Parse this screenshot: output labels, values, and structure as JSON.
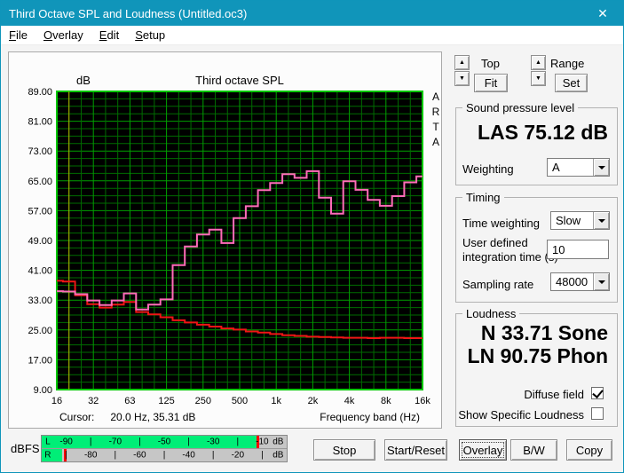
{
  "window": {
    "title": "Third Octave SPL and Loudness (Untitled.oc3)",
    "close_glyph": "✕"
  },
  "menu": {
    "items": [
      "File",
      "Overlay",
      "Edit",
      "Setup"
    ]
  },
  "chart_data": {
    "type": "step-line",
    "title": "Third octave SPL",
    "ylabel": "dB",
    "xlabel": "Frequency band (Hz)",
    "watermark": "ARTA",
    "ylim": [
      9,
      89
    ],
    "y_tick_step": 8,
    "y_minor_step": 2,
    "y_ticks": [
      "89.00",
      "81.00",
      "73.00",
      "65.00",
      "57.00",
      "49.00",
      "41.00",
      "33.00",
      "25.00",
      "17.00",
      "9.00"
    ],
    "x_ticks": [
      "16",
      "32",
      "63",
      "125",
      "250",
      "500",
      "1k",
      "2k",
      "4k",
      "8k",
      "16k"
    ],
    "bands": [
      "16",
      "20",
      "25",
      "31.5",
      "40",
      "50",
      "63",
      "80",
      "100",
      "125",
      "160",
      "200",
      "250",
      "315",
      "400",
      "500",
      "630",
      "800",
      "1k",
      "1.25k",
      "1.6k",
      "2k",
      "2.5k",
      "3.15k",
      "4k",
      "5k",
      "6.3k",
      "8k",
      "10k",
      "12.5k",
      "16k"
    ],
    "series": [
      {
        "name": "third-octave-spl",
        "color": "#ff6cb8",
        "values": [
          35.4,
          35.3,
          34.6,
          32.9,
          31.7,
          32.9,
          34.8,
          30.5,
          31.8,
          33.2,
          42.4,
          47.4,
          50.6,
          51.9,
          48.3,
          55.0,
          58.2,
          62.5,
          64.4,
          66.8,
          65.8,
          67.6,
          60.5,
          56.2,
          64.9,
          62.6,
          59.9,
          58.3,
          60.9,
          64.6,
          66.2
        ]
      },
      {
        "name": "reference-curve",
        "color": "#ef1515",
        "values": [
          38.2,
          38.0,
          34.3,
          31.9,
          31.0,
          31.8,
          32.5,
          29.8,
          29.2,
          28.4,
          27.6,
          27.0,
          26.4,
          25.9,
          25.4,
          25.1,
          24.6,
          24.3,
          23.9,
          23.6,
          23.4,
          23.2,
          23.1,
          23.0,
          22.9,
          22.9,
          22.8,
          22.9,
          22.9,
          22.8,
          22.8
        ]
      }
    ],
    "cursor": {
      "label": "Cursor:",
      "value": "20.0 Hz, 35.31 dB",
      "band_index": 1,
      "color": "#b9b900"
    },
    "grid": {
      "bg": "#000000",
      "minor": "#006c00",
      "major": "#00a000",
      "border": "#00c800"
    }
  },
  "scaler": {
    "top_label": "Top",
    "fit_label": "Fit",
    "range_label": "Range",
    "set_label": "Set",
    "up_glyph": "▲",
    "down_glyph": "▼"
  },
  "spl_group": {
    "title": "Sound pressure level",
    "value": "LAS 75.12 dB",
    "weighting_label": "Weighting",
    "weighting_value": "A"
  },
  "timing_group": {
    "title": "Timing",
    "time_weighting_label": "Time weighting",
    "time_weighting_value": "Slow",
    "integration_label_1": "User defined",
    "integration_label_2": "integration time (s)",
    "integration_value": "10",
    "sampling_label": "Sampling rate",
    "sampling_value": "48000"
  },
  "loudness_group": {
    "title": "Loudness",
    "n_value": "N 33.71 Sone",
    "ln_value": "LN 90.75 Phon",
    "diffuse_label": "Diffuse field",
    "diffuse_checked": true,
    "specific_label": "Show Specific Loudness",
    "specific_checked": false
  },
  "meter": {
    "label": "dBFS",
    "rows": [
      {
        "channel": "L",
        "bar_pct": 87.5,
        "peak_pct": 87.8,
        "labels": [
          {
            "t": "L",
            "x": 2.5
          },
          {
            "t": "-90",
            "x": 10
          },
          {
            "t": "|",
            "x": 20
          },
          {
            "t": "-70",
            "x": 30
          },
          {
            "t": "|",
            "x": 40
          },
          {
            "t": "-50",
            "x": 50
          },
          {
            "t": "|",
            "x": 60
          },
          {
            "t": "-30",
            "x": 70
          },
          {
            "t": "|",
            "x": 80
          },
          {
            "t": "-10",
            "x": 90
          },
          {
            "t": "dB",
            "x": 96.5
          }
        ]
      },
      {
        "channel": "R",
        "bar_pct": 8.3,
        "peak_pct": 9,
        "labels": [
          {
            "t": "R",
            "x": 2.5
          },
          {
            "t": "|",
            "x": 10
          },
          {
            "t": "-80",
            "x": 20
          },
          {
            "t": "|",
            "x": 30
          },
          {
            "t": "-60",
            "x": 40
          },
          {
            "t": "|",
            "x": 50
          },
          {
            "t": "-40",
            "x": 60
          },
          {
            "t": "|",
            "x": 70
          },
          {
            "t": "-20",
            "x": 80
          },
          {
            "t": "|",
            "x": 90
          },
          {
            "t": "dB",
            "x": 96.5
          }
        ]
      }
    ]
  },
  "buttons": {
    "stop": "Stop",
    "start": "Start/Reset",
    "overlay": "Overlay",
    "bw": "B/W",
    "copy": "Copy"
  }
}
